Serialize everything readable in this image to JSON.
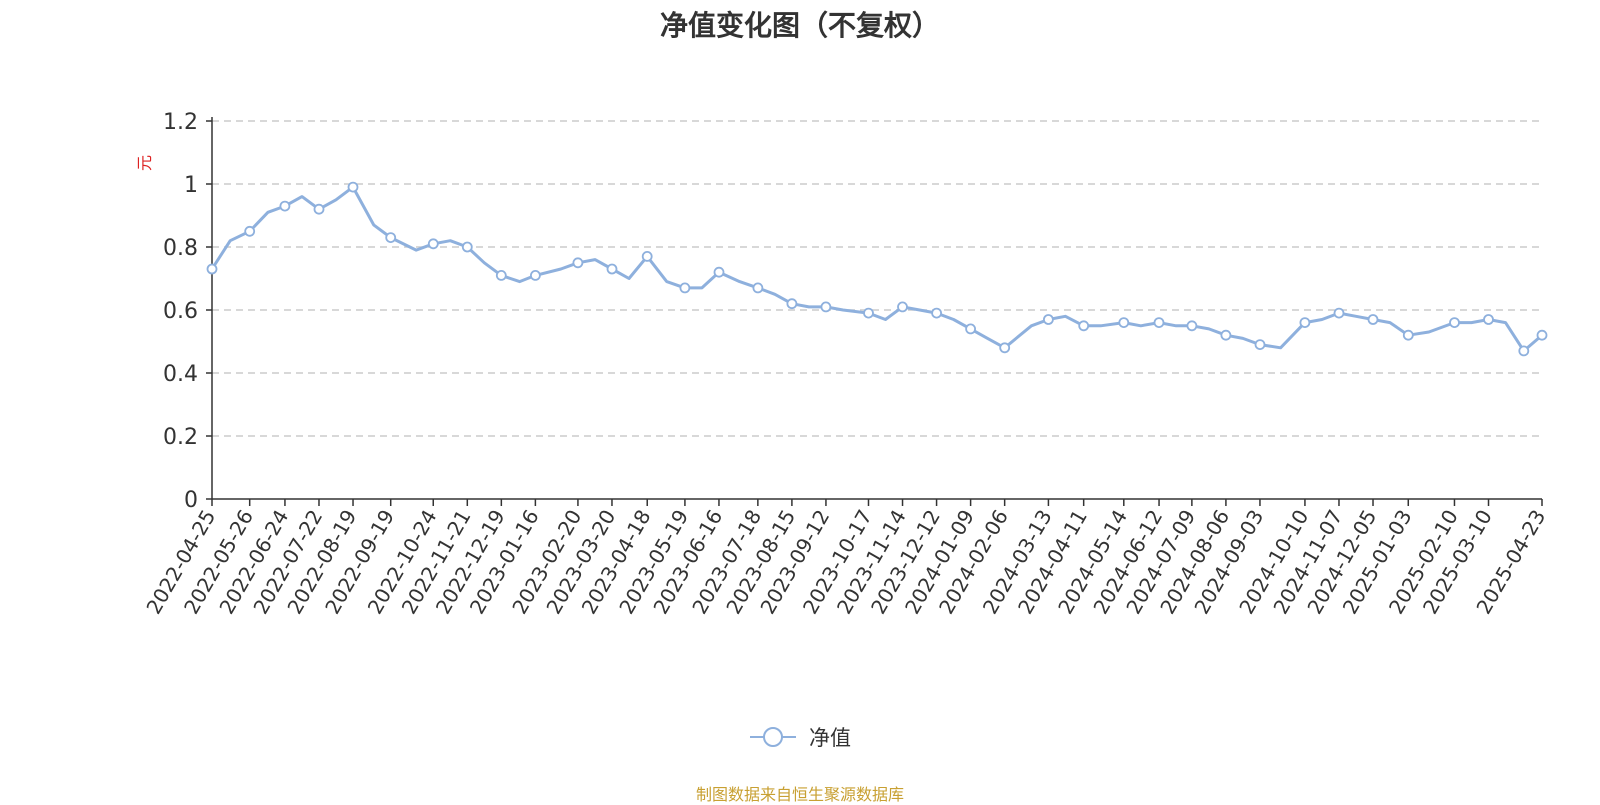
{
  "title": "净值变化图（不复权）",
  "source_note": "制图数据来自恒生聚源数据库",
  "colors": {
    "series": "#8eb0dd",
    "grid": "#cccccc",
    "axis": "#333333",
    "unit": "#dd2222",
    "source": "#c8a032"
  },
  "chart_data": {
    "type": "line",
    "title": "净值变化图（不复权）",
    "xlabel": "",
    "ylabel": "元",
    "ylim": [
      0,
      1.2
    ],
    "yticks": [
      "0",
      "0.2",
      "0.4",
      "0.6",
      "0.8",
      "1",
      "1.2"
    ],
    "ytick_values": [
      0,
      0.2,
      0.4,
      0.6,
      0.8,
      1.0,
      1.2
    ],
    "grid": true,
    "legend_position": "bottom-center",
    "x_tick_labels": [
      "2022-04-25",
      "2022-05-26",
      "2022-06-24",
      "2022-07-22",
      "2022-08-19",
      "2022-09-19",
      "2022-10-24",
      "2022-11-21",
      "2022-12-19",
      "2023-01-16",
      "2023-02-20",
      "2023-03-20",
      "2023-04-18",
      "2023-05-19",
      "2023-06-16",
      "2023-07-18",
      "2023-08-15",
      "2023-09-12",
      "2023-10-17",
      "2023-11-14",
      "2023-12-12",
      "2024-01-09",
      "2024-02-06",
      "2024-03-13",
      "2024-04-11",
      "2024-05-14",
      "2024-06-12",
      "2024-07-09",
      "2024-08-06",
      "2024-09-03",
      "2024-10-10",
      "2024-11-07",
      "2024-12-05",
      "2025-01-03",
      "2025-02-10",
      "2025-03-10",
      "2025-04-23"
    ],
    "series": [
      {
        "name": "净值",
        "x": [
          "2022-04-25",
          "2022-05-10",
          "2022-05-26",
          "2022-06-10",
          "2022-06-24",
          "2022-07-08",
          "2022-07-22",
          "2022-08-05",
          "2022-08-19",
          "2022-09-05",
          "2022-09-19",
          "2022-10-10",
          "2022-10-24",
          "2022-11-07",
          "2022-11-21",
          "2022-12-05",
          "2022-12-19",
          "2023-01-03",
          "2023-01-16",
          "2023-02-06",
          "2023-02-20",
          "2023-03-06",
          "2023-03-20",
          "2023-04-03",
          "2023-04-18",
          "2023-05-04",
          "2023-05-19",
          "2023-06-02",
          "2023-06-16",
          "2023-07-03",
          "2023-07-18",
          "2023-08-01",
          "2023-08-15",
          "2023-08-29",
          "2023-09-12",
          "2023-09-26",
          "2023-10-17",
          "2023-10-31",
          "2023-11-14",
          "2023-11-28",
          "2023-12-12",
          "2023-12-26",
          "2024-01-09",
          "2024-01-23",
          "2024-02-06",
          "2024-02-28",
          "2024-03-13",
          "2024-03-27",
          "2024-04-11",
          "2024-04-25",
          "2024-05-14",
          "2024-05-28",
          "2024-06-12",
          "2024-06-26",
          "2024-07-09",
          "2024-07-23",
          "2024-08-06",
          "2024-08-20",
          "2024-09-03",
          "2024-09-20",
          "2024-10-10",
          "2024-10-24",
          "2024-11-07",
          "2024-11-21",
          "2024-12-05",
          "2024-12-19",
          "2025-01-03",
          "2025-01-20",
          "2025-02-10",
          "2025-02-24",
          "2025-03-10",
          "2025-03-24",
          "2025-04-08",
          "2025-04-23"
        ],
        "values": [
          0.73,
          0.82,
          0.85,
          0.91,
          0.93,
          0.96,
          0.92,
          0.95,
          0.99,
          0.87,
          0.83,
          0.79,
          0.81,
          0.82,
          0.8,
          0.75,
          0.71,
          0.69,
          0.71,
          0.73,
          0.75,
          0.76,
          0.73,
          0.7,
          0.77,
          0.69,
          0.67,
          0.67,
          0.72,
          0.69,
          0.67,
          0.65,
          0.62,
          0.61,
          0.61,
          0.6,
          0.59,
          0.57,
          0.61,
          0.6,
          0.59,
          0.57,
          0.54,
          0.51,
          0.48,
          0.55,
          0.57,
          0.58,
          0.55,
          0.55,
          0.56,
          0.55,
          0.56,
          0.55,
          0.55,
          0.54,
          0.52,
          0.51,
          0.49,
          0.48,
          0.56,
          0.57,
          0.59,
          0.58,
          0.57,
          0.56,
          0.52,
          0.53,
          0.56,
          0.56,
          0.57,
          0.56,
          0.47,
          0.52
        ]
      }
    ]
  }
}
